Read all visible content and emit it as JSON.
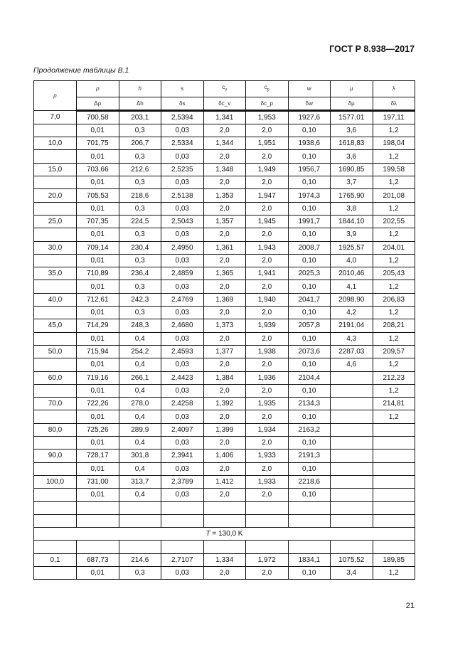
{
  "header": {
    "standard": "ГОСТ Р 8.938—2017"
  },
  "caption": "Продолжение таблицы В.1",
  "columns": {
    "p": "p",
    "top": [
      "ρ",
      "h",
      "s",
      "c_v",
      "c_p",
      "w",
      "μ",
      "λ"
    ],
    "bottom": [
      "Δρ",
      "Δh",
      "δs",
      "δc_v",
      "δc_p",
      "δw",
      "δμ",
      "δλ"
    ]
  },
  "rows": [
    {
      "p": "7,0",
      "v": [
        "700,58",
        "203,1",
        "2,5394",
        "1,341",
        "1,953",
        "1927,6",
        "1577,01",
        "197,11"
      ],
      "u": [
        "0,01",
        "0,3",
        "0,03",
        "2,0",
        "2,0",
        "0,10",
        "3,6",
        "1,2"
      ]
    },
    {
      "p": "10,0",
      "v": [
        "701,75",
        "206,7",
        "2,5334",
        "1,344",
        "1,951",
        "1938,6",
        "1618,83",
        "198,04"
      ],
      "u": [
        "0,01",
        "0,3",
        "0,03",
        "2,0",
        "2,0",
        "0,10",
        "3,6",
        "1,2"
      ]
    },
    {
      "p": "15,0",
      "v": [
        "703,66",
        "212,6",
        "2,5235",
        "1,348",
        "1,949",
        "1956,7",
        "1690,85",
        "199,58"
      ],
      "u": [
        "0,01",
        "0,3",
        "0,03",
        "2,0",
        "2,0",
        "0,10",
        "3,7",
        "1,2"
      ]
    },
    {
      "p": "20,0",
      "v": [
        "705,53",
        "218,6",
        "2,5138",
        "1,353",
        "1,947",
        "1974,3",
        "1765,90",
        "201,08"
      ],
      "u": [
        "0,01",
        "0,3",
        "0,03",
        "2,0",
        "2,0",
        "0,10",
        "3,8",
        "1,2"
      ]
    },
    {
      "p": "25,0",
      "v": [
        "707,35",
        "224,5",
        "2,5043",
        "1,357",
        "1,945",
        "1991,7",
        "1844,10",
        "202,55"
      ],
      "u": [
        "0,01",
        "0,3",
        "0,03",
        "2,0",
        "2,0",
        "0,10",
        "3,9",
        "1,2"
      ]
    },
    {
      "p": "30,0",
      "v": [
        "709,14",
        "230,4",
        "2,4950",
        "1,361",
        "1,943",
        "2008,7",
        "1925,57",
        "204,01"
      ],
      "u": [
        "0,01",
        "0,3",
        "0,03",
        "2,0",
        "2,0",
        "0,10",
        "4,0",
        "1,2"
      ]
    },
    {
      "p": "35,0",
      "v": [
        "710,89",
        "236,4",
        "2,4859",
        "1,365",
        "1,941",
        "2025,3",
        "2010,46",
        "205,43"
      ],
      "u": [
        "0,01",
        "0,3",
        "0,03",
        "2,0",
        "2,0",
        "0,10",
        "4,1",
        "1,2"
      ]
    },
    {
      "p": "40,0",
      "v": [
        "712,61",
        "242,3",
        "2,4769",
        "1,369",
        "1,940",
        "2041,7",
        "2098,90",
        "206,83"
      ],
      "u": [
        "0,01",
        "0,3",
        "0,03",
        "2,0",
        "2,0",
        "0,10",
        "4,2",
        "1,2"
      ]
    },
    {
      "p": "45,0",
      "v": [
        "714,29",
        "248,3",
        "2,4680",
        "1,373",
        "1,939",
        "2057,8",
        "2191,04",
        "208,21"
      ],
      "u": [
        "0,01",
        "0,4",
        "0,03",
        "2,0",
        "2,0",
        "0,10",
        "4,3",
        "1,2"
      ]
    },
    {
      "p": "50,0",
      "v": [
        "715,94",
        "254,2",
        "2,4593",
        "1,377",
        "1,938",
        "2073,6",
        "2287,03",
        "209,57"
      ],
      "u": [
        "0,01",
        "0,4",
        "0,03",
        "2,0",
        "2,0",
        "0,10",
        "4,6",
        "1,2"
      ]
    },
    {
      "p": "60,0",
      "v": [
        "719,16",
        "266,1",
        "2,4423",
        "1,384",
        "1,936",
        "2104,4",
        "",
        "212,23"
      ],
      "u": [
        "0,01",
        "0,4",
        "0,03",
        "2,0",
        "2,0",
        "0,10",
        "",
        "1,2"
      ]
    },
    {
      "p": "70,0",
      "v": [
        "722,26",
        "278,0",
        "2,4258",
        "1,392",
        "1,935",
        "2134,3",
        "",
        "214,81"
      ],
      "u": [
        "0,01",
        "0,4",
        "0,03",
        "2,0",
        "2,0",
        "0,10",
        "",
        "1,2"
      ]
    },
    {
      "p": "80,0",
      "v": [
        "725,26",
        "289,9",
        "2,4097",
        "1,399",
        "1,934",
        "2163,2",
        "",
        ""
      ],
      "u": [
        "0,01",
        "0,4",
        "0,03",
        "2,0",
        "2,0",
        "0,10",
        "",
        ""
      ]
    },
    {
      "p": "90,0",
      "v": [
        "728,17",
        "301,8",
        "2,3941",
        "1,406",
        "1,933",
        "2191,3",
        "",
        ""
      ],
      "u": [
        "0,01",
        "0,4",
        "0,03",
        "2,0",
        "2,0",
        "0,10",
        "",
        ""
      ]
    },
    {
      "p": "100,0",
      "v": [
        "731,00",
        "313,7",
        "2,3789",
        "1,412",
        "1,933",
        "2218,6",
        "",
        ""
      ],
      "u": [
        "0,01",
        "0,4",
        "0,03",
        "2,0",
        "2,0",
        "0,10",
        "",
        ""
      ]
    }
  ],
  "section": "T = 130,0 K",
  "rows2": [
    {
      "p": "0,1",
      "v": [
        "687,73",
        "214,6",
        "2,7107",
        "1,334",
        "1,972",
        "1834,1",
        "1075,52",
        "189,85"
      ],
      "u": [
        "0,01",
        "0,3",
        "0,03",
        "2,0",
        "2,0",
        "0,10",
        "3,4",
        "1,2"
      ]
    }
  ],
  "page_number": "21"
}
